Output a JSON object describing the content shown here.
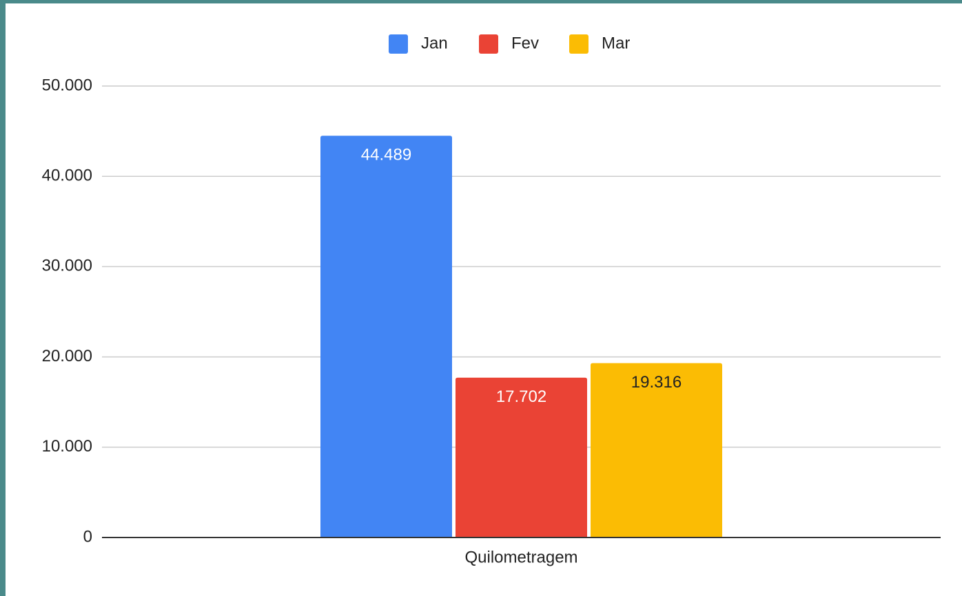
{
  "chart_data": {
    "type": "bar",
    "categories": [
      "Quilometragem"
    ],
    "series": [
      {
        "name": "Jan",
        "color": "#4285f4",
        "label_color": "#ffffff",
        "values": [
          44489
        ],
        "value_labels": [
          "44.489"
        ]
      },
      {
        "name": "Fev",
        "color": "#ea4335",
        "label_color": "#ffffff",
        "values": [
          17702
        ],
        "value_labels": [
          "17.702"
        ]
      },
      {
        "name": "Mar",
        "color": "#fbbc04",
        "label_color": "#222222",
        "values": [
          19316
        ],
        "value_labels": [
          "19.316"
        ]
      }
    ],
    "ylim": [
      0,
      50000
    ],
    "yticks": [
      0,
      {
        "value": 10000,
        "label": "10.000"
      },
      {
        "value": 20000,
        "label": "20.000"
      },
      {
        "value": 30000,
        "label": "30.000"
      },
      {
        "value": 40000,
        "label": "40.000"
      },
      {
        "value": 50000,
        "label": "50.000"
      }
    ],
    "grid": true,
    "legend": "top"
  }
}
